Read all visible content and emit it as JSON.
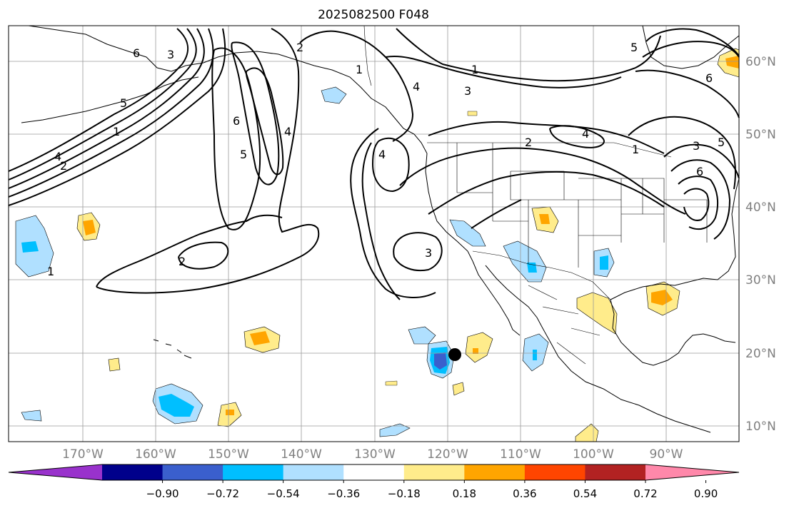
{
  "title": "2025082500 F048",
  "lon_labels": [
    "170°W",
    "160°W",
    "150°W",
    "140°W",
    "130°W",
    "120°W",
    "110°W",
    "100°W",
    "90°W"
  ],
  "lat_labels": [
    "60°N",
    "50°N",
    "40°N",
    "30°N",
    "20°N",
    "10°N"
  ],
  "contour_labels": [
    "1",
    "2",
    "3",
    "4",
    "5",
    "6"
  ],
  "colorbar": {
    "colors": [
      "#9932cc",
      "#00008b",
      "#3a5fcd",
      "#00bfff",
      "#b0e0ff",
      "#ffffff",
      "#ffec8b",
      "#ffa500",
      "#ff4500",
      "#b22222",
      "#ff88aa"
    ],
    "tick_labels": [
      "−0.90",
      "−0.72",
      "−0.54",
      "−0.36",
      "−0.18",
      "0.18",
      "0.36",
      "0.54",
      "0.72",
      "0.90"
    ]
  },
  "marker": "storm-position-dot"
}
